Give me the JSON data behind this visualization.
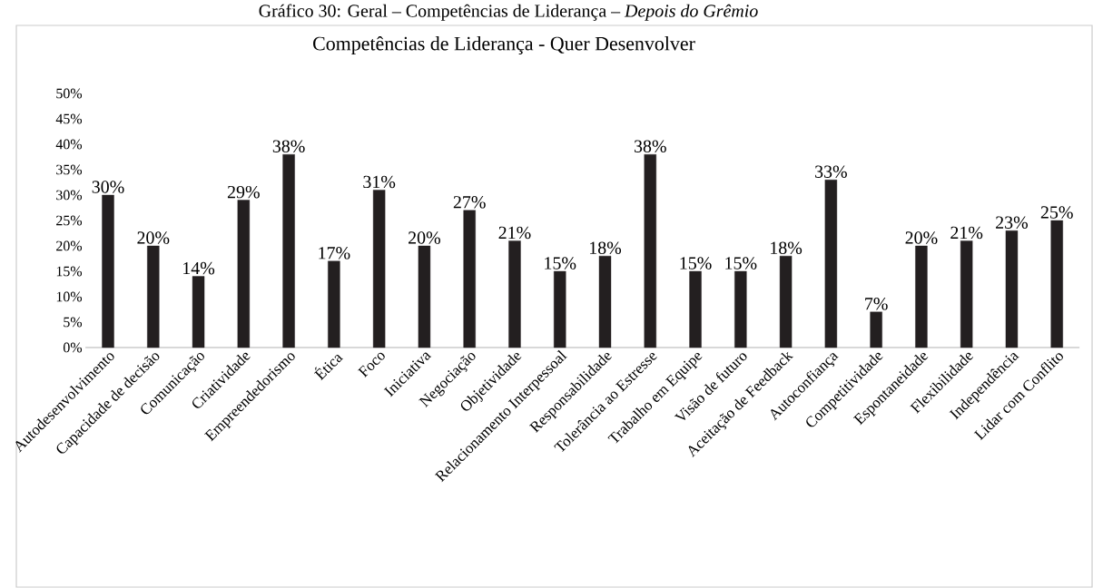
{
  "chart_data": {
    "type": "bar",
    "title": "Competências de Liderança - Quer Desenvolver",
    "annotations": [
      "Gráfico 30: Geral – Competências de Liderança – *Depois do Grêmio*"
    ],
    "categories": [
      "Autodesenvolvimento",
      "Capacidade de decisão",
      "Comunicação",
      "Criatividade",
      "Empreendedorismo",
      "Ética",
      "Foco",
      "Iniciativa",
      "Negociação",
      "Objetividade",
      "Relacionamento Interpessoal",
      "Responsabilidade",
      "Tolerância ao Estresse",
      "Trabalho em Equipe",
      "Visão de futuro",
      "Aceitação de Feedback",
      "Autoconfiança",
      "Competitividade",
      "Espontaneidade",
      "Flexibilidade",
      "Independência",
      "Lidar com Conflito"
    ],
    "values": [
      30,
      20,
      14,
      29,
      38,
      17,
      31,
      20,
      27,
      21,
      15,
      18,
      38,
      15,
      15,
      18,
      33,
      7,
      20,
      21,
      23,
      25
    ],
    "value_labels": [
      "30%",
      "20%",
      "14%",
      "29%",
      "38%",
      "17%",
      "31%",
      "20%",
      "27%",
      "21%",
      "15%",
      "18%",
      "38%",
      "15%",
      "15%",
      "18%",
      "33%",
      "7%",
      "20%",
      "21%",
      "23%",
      "25%"
    ],
    "color": "#231f20",
    "ylim": [
      0,
      50
    ],
    "yticks": [
      {
        "value": 0,
        "label": "0%"
      },
      {
        "value": 5,
        "label": "5%"
      },
      {
        "value": 10,
        "label": "10%"
      },
      {
        "value": 15,
        "label": "15%"
      },
      {
        "value": 20,
        "label": "20%"
      },
      {
        "value": 25,
        "label": "25%"
      },
      {
        "value": 30,
        "label": "30%"
      },
      {
        "value": 35,
        "label": "35%"
      },
      {
        "value": 40,
        "label": "40%"
      },
      {
        "value": 45,
        "label": "45%"
      },
      {
        "value": 50,
        "label": "50%"
      }
    ],
    "grid": false
  }
}
